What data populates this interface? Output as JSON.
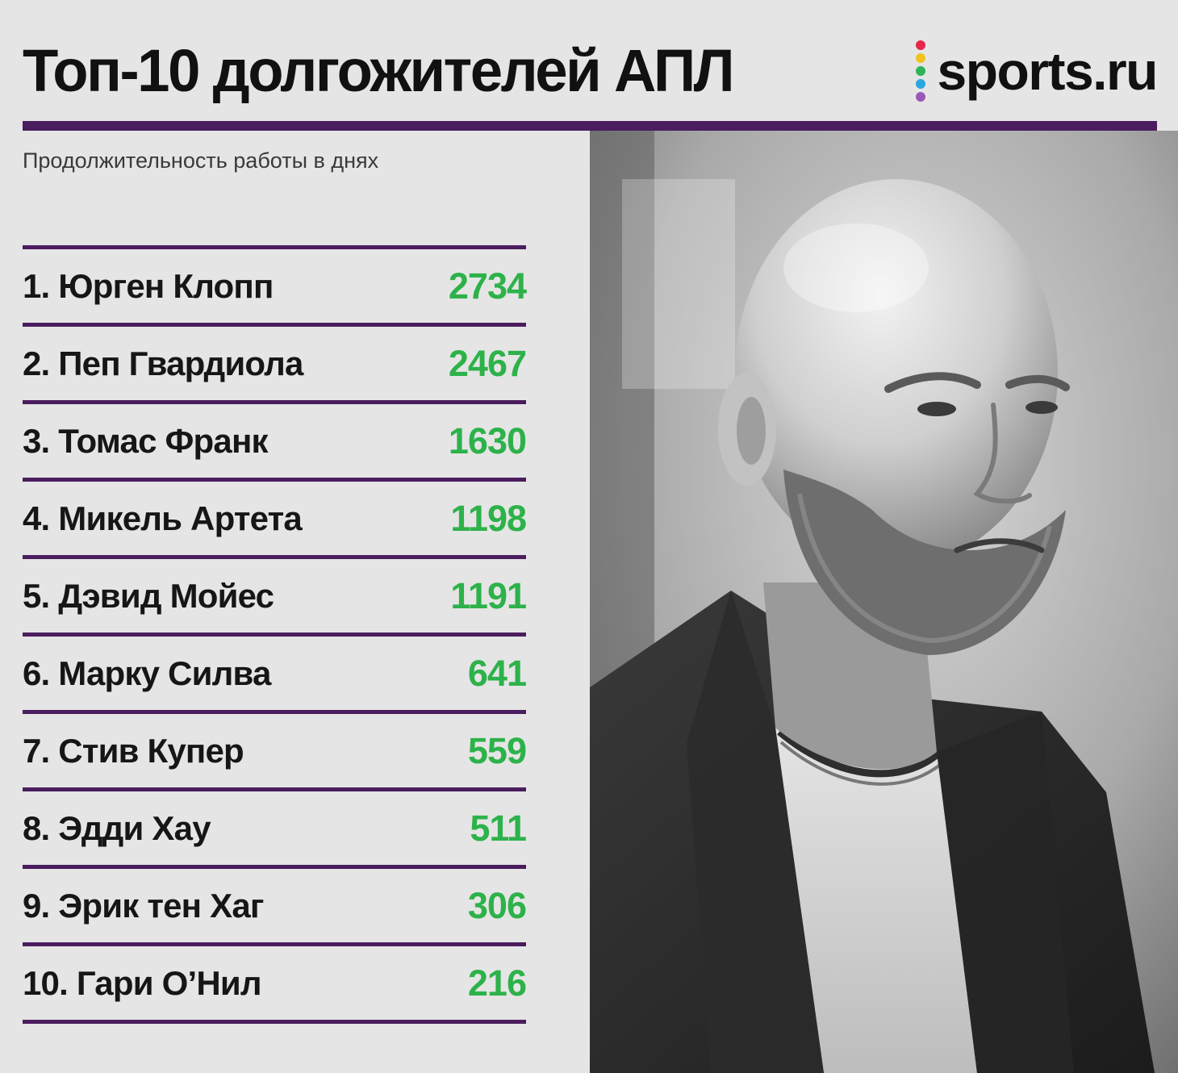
{
  "header": {
    "title": "Топ-10 долгожителей АПЛ",
    "brand": "sports.ru",
    "brand_dot_colors": [
      "#e6264b",
      "#f0c21e",
      "#2fb457",
      "#2aa7e0",
      "#9b59b6"
    ]
  },
  "subtitle": "Продолжительность работы в днях",
  "colors": {
    "accent_rule": "#4a1d5e",
    "value_green": "#2db24a"
  },
  "ranking": [
    {
      "label": "1. Юрген Клопп",
      "days": "2734"
    },
    {
      "label": "2. Пеп Гвардиола",
      "days": "2467"
    },
    {
      "label": "3. Томас Франк",
      "days": "1630"
    },
    {
      "label": "4. Микель Артета",
      "days": "1198"
    },
    {
      "label": "5. Дэвид Мойес",
      "days": "1191"
    },
    {
      "label": "6. Марку Силва",
      "days": "641"
    },
    {
      "label": "7. Стив Купер",
      "days": "559"
    },
    {
      "label": "8. Эдди Хау",
      "days": "511"
    },
    {
      "label": "9. Эрик тен Хаг",
      "days": "306"
    },
    {
      "label": "10. Гари О’Нил",
      "days": "216"
    }
  ]
}
